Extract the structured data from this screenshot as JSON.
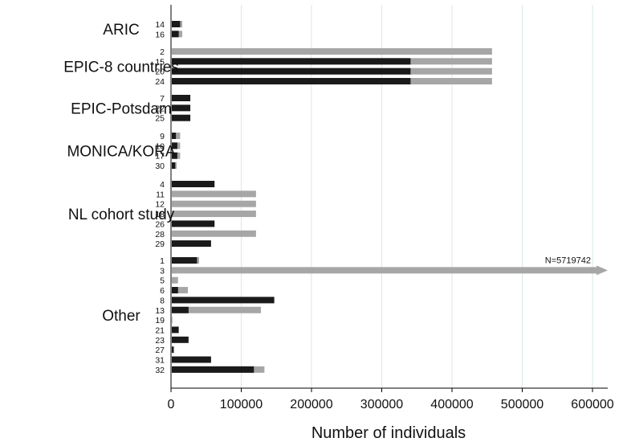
{
  "chart_data": {
    "type": "bar",
    "orientation": "horizontal",
    "stacked": true,
    "xlabel": "Number of individuals",
    "xlim": [
      0,
      620000
    ],
    "xticks": [
      "0",
      "100000",
      "200000",
      "300000",
      "400000",
      "500000",
      "600000"
    ],
    "colors": {
      "dark": "#1a1a1a",
      "light": "#a6a6a6"
    },
    "groups": [
      {
        "name": "ARIC",
        "rows": [
          {
            "label": "14",
            "dark": 13000,
            "total": 16000
          },
          {
            "label": "16",
            "dark": 11000,
            "total": 16000
          }
        ]
      },
      {
        "name": "EPIC-8 countries",
        "rows": [
          {
            "label": "2",
            "dark": 0,
            "total": 457000
          },
          {
            "label": "15",
            "dark": 341000,
            "total": 457000
          },
          {
            "label": "20",
            "dark": 341000,
            "total": 457000
          },
          {
            "label": "24",
            "dark": 341000,
            "total": 457000
          }
        ]
      },
      {
        "name": "EPIC-Potsdam",
        "rows": [
          {
            "label": "7",
            "dark": 27500,
            "total": 27500
          },
          {
            "label": "22",
            "dark": 27500,
            "total": 27500
          },
          {
            "label": "25",
            "dark": 27500,
            "total": 27500
          }
        ]
      },
      {
        "name": "MONICA/KORA",
        "rows": [
          {
            "label": "9",
            "dark": 7000,
            "total": 13000
          },
          {
            "label": "10",
            "dark": 9000,
            "total": 13000
          },
          {
            "label": "17",
            "dark": 9000,
            "total": 13000
          },
          {
            "label": "30",
            "dark": 6000,
            "total": 8000
          }
        ]
      },
      {
        "name": "NL cohort study",
        "rows": [
          {
            "label": "4",
            "dark": 62000,
            "total": 62000
          },
          {
            "label": "11",
            "dark": 0,
            "total": 121000
          },
          {
            "label": "12",
            "dark": 0,
            "total": 121000
          },
          {
            "label": "18",
            "dark": 0,
            "total": 121000
          },
          {
            "label": "26",
            "dark": 62000,
            "total": 62000
          },
          {
            "label": "28",
            "dark": 0,
            "total": 121000
          },
          {
            "label": "29",
            "dark": 57000,
            "total": 57000
          }
        ]
      },
      {
        "name": "Other",
        "rows": [
          {
            "label": "1",
            "dark": 37000,
            "total": 40000
          },
          {
            "label": "3",
            "dark": 0,
            "total": 5719742,
            "truncated": true,
            "annotation": "N=5719742"
          },
          {
            "label": "5",
            "dark": 0,
            "total": 10000
          },
          {
            "label": "6",
            "dark": 10000,
            "total": 24000
          },
          {
            "label": "8",
            "dark": 147000,
            "total": 147000
          },
          {
            "label": "13",
            "dark": 25000,
            "total": 128000
          },
          {
            "label": "19",
            "dark": 0,
            "total": 2000
          },
          {
            "label": "21",
            "dark": 11000,
            "total": 11000
          },
          {
            "label": "23",
            "dark": 25000,
            "total": 25000
          },
          {
            "label": "27",
            "dark": 4000,
            "total": 4000
          },
          {
            "label": "31",
            "dark": 57000,
            "total": 57000
          },
          {
            "label": "32",
            "dark": 118000,
            "total": 133000
          }
        ]
      }
    ]
  }
}
